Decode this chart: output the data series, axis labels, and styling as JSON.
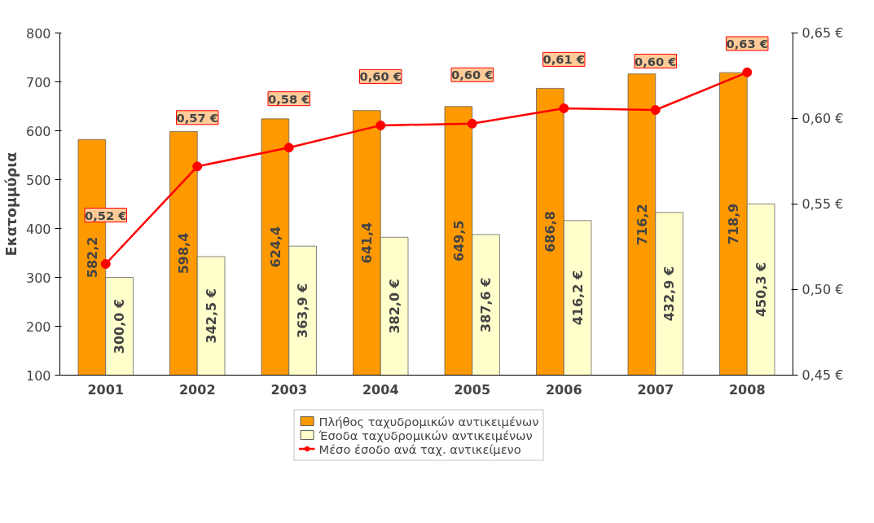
{
  "chart_data": {
    "type": "bar",
    "categories": [
      "2001",
      "2002",
      "2003",
      "2004",
      "2005",
      "2006",
      "2007",
      "2008"
    ],
    "ylabel": "Εκατομμύρια",
    "ylim": [
      100,
      800
    ],
    "yticks": [
      100,
      200,
      300,
      400,
      500,
      600,
      700,
      800
    ],
    "y2lim": [
      0.45,
      0.65
    ],
    "y2ticks": [
      {
        "value": 0.45,
        "label": "0,45 €"
      },
      {
        "value": 0.5,
        "label": "0,50 €"
      },
      {
        "value": 0.55,
        "label": "0,55 €"
      },
      {
        "value": 0.6,
        "label": "0,60 €"
      },
      {
        "value": 0.65,
        "label": "0,65 €"
      }
    ],
    "grid": false,
    "legend": "bottom",
    "series": [
      {
        "name": "Πλήθος ταχυδρομικών αντικειμένων",
        "color": "#ff9900",
        "values": [
          582.2,
          598.4,
          624.4,
          641.4,
          649.5,
          686.8,
          716.2,
          718.9
        ],
        "value_labels": [
          "582,2",
          "598,4",
          "624,4",
          "641,4",
          "649,5",
          "686,8",
          "716,2",
          "718,9"
        ]
      },
      {
        "name": "Έσοδα ταχυδρομικών αντικειμένων",
        "color": "#ffffcc",
        "values": [
          300.0,
          342.5,
          363.9,
          382.0,
          387.6,
          416.2,
          432.9,
          450.3
        ],
        "value_labels": [
          "300,0 €",
          "342,5 €",
          "363,9 €",
          "382,0 €",
          "387,6 €",
          "416,2 €",
          "432,9 €",
          "450,3 €"
        ]
      },
      {
        "name": "Μέσο έσοδο ανά ταχ. αντικείμενο",
        "type": "line",
        "axis": "y2",
        "color": "#ff0000",
        "marker": "circle",
        "values": [
          0.515,
          0.572,
          0.583,
          0.596,
          0.597,
          0.606,
          0.605,
          0.627
        ],
        "value_labels": [
          "0,52 €",
          "0,57 €",
          "0,58 €",
          "0,60 €",
          "0,60 €",
          "0,61 €",
          "0,60 €",
          "0,63 €"
        ]
      }
    ]
  }
}
